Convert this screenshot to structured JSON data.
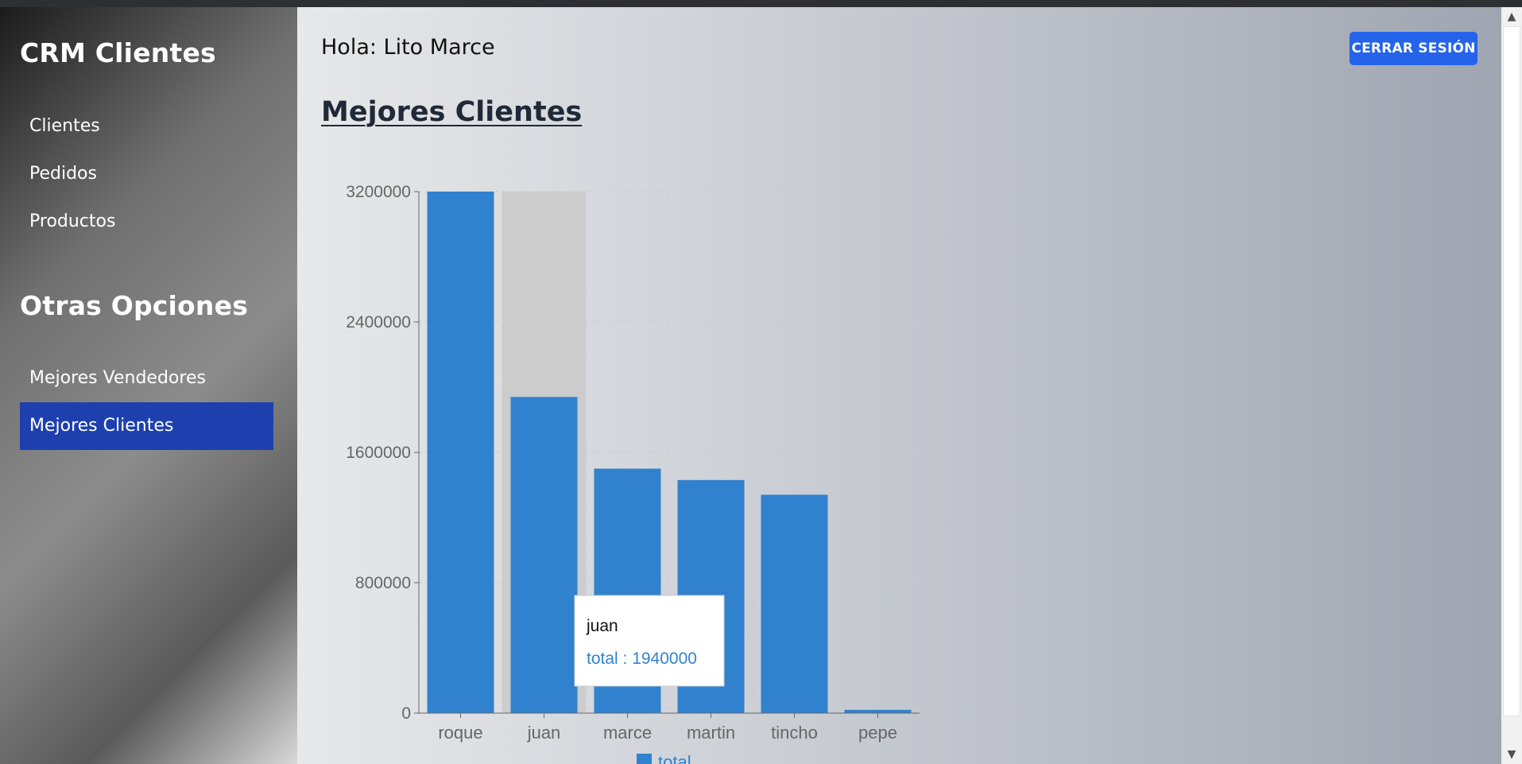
{
  "app": {
    "brand": "CRM Clientes"
  },
  "sidebar": {
    "main_items": [
      {
        "label": "Clientes"
      },
      {
        "label": "Pedidos"
      },
      {
        "label": "Productos"
      }
    ],
    "section_title": "Otras Opciones",
    "other_items": [
      {
        "label": "Mejores Vendedores",
        "active": false
      },
      {
        "label": "Mejores Clientes",
        "active": true
      }
    ]
  },
  "header": {
    "greeting": "Hola: Lito Marce",
    "logout_label": "CERRAR SESIÓN"
  },
  "page": {
    "title": "Mejores Clientes"
  },
  "colors": {
    "bar": "#3182ce",
    "active_nav": "#1e40af",
    "logout": "#2563eb",
    "hover_band": "#cccccc"
  },
  "chart_data": {
    "type": "bar",
    "categories": [
      "roque",
      "juan",
      "marce",
      "martin",
      "tincho",
      "pepe"
    ],
    "series": [
      {
        "name": "total",
        "values": [
          3200000,
          1940000,
          1500000,
          1430000,
          1340000,
          20000
        ]
      }
    ],
    "yticks": [
      "0",
      "800000",
      "1600000",
      "2400000",
      "3200000"
    ],
    "ylim": [
      0,
      3200000
    ],
    "grid": true,
    "legend": "bottom",
    "tooltip": {
      "category": "juan",
      "label": "total : 1940000"
    },
    "hovered_index": 1
  }
}
